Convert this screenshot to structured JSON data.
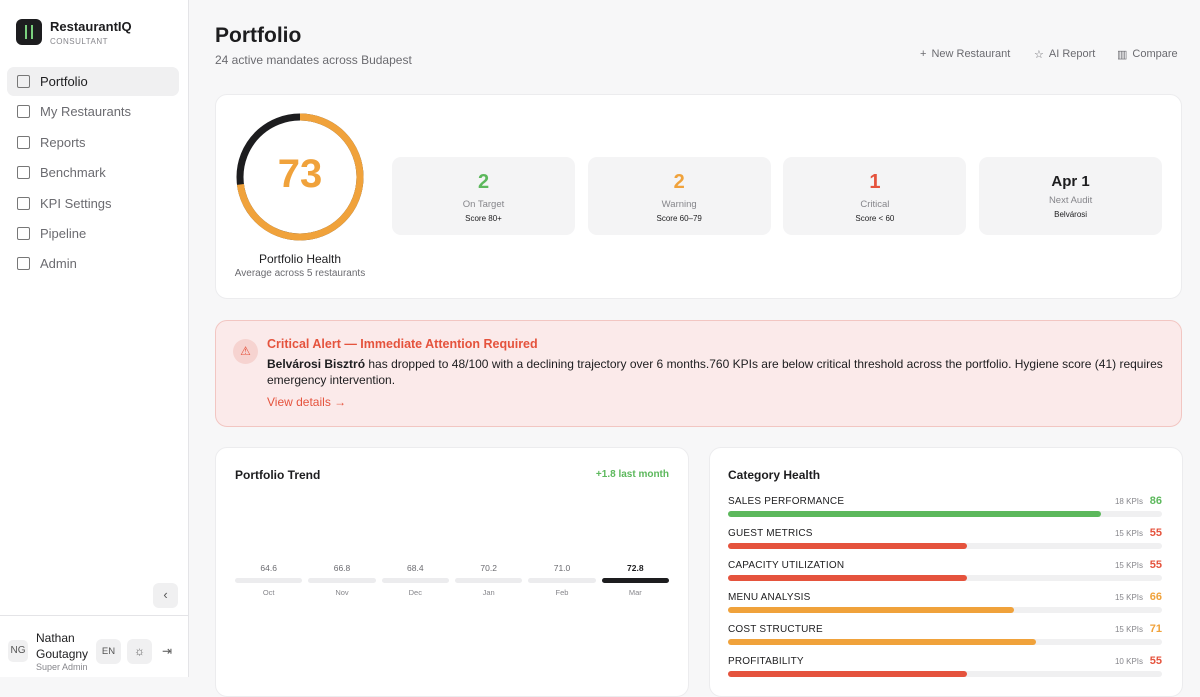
{
  "sidebar": {
    "brand": "RestaurantIQ",
    "role": "CONSULTANT",
    "nav": [
      "Portfolio",
      "My Restaurants",
      "Reports",
      "Benchmark",
      "KPI Settings",
      "Pipeline",
      "Admin"
    ],
    "user": {
      "initials": "NG",
      "name": "Nathan Goutagny",
      "title": "Super Admin",
      "language": "EN"
    }
  },
  "header": {
    "title": "Portfolio",
    "subtitle": "24 active mandates across Budapest",
    "actions": [
      "New Restaurant",
      "AI Report",
      "Compare"
    ]
  },
  "health": {
    "score": 73,
    "label": "Portfolio Health",
    "caption": "Average across 5 restaurants",
    "color": "#f0a23b",
    "stats": [
      {
        "value": 2,
        "label": "On Target",
        "note": "Score 80+",
        "color": "#5cb85c"
      },
      {
        "value": 2,
        "label": "Warning",
        "note": "Score 60–79",
        "color": "#f0a23b"
      },
      {
        "value": 1,
        "label": "Critical",
        "note": "Score < 60",
        "color": "#e5533d"
      },
      {
        "value": "Apr 1",
        "label": "Next Audit",
        "note": "Belvárosi",
        "color": "#1d1d1f"
      }
    ]
  },
  "alert": {
    "title": "Critical Alert — Immediate Attention Required",
    "restaurant": "Belvárosi Bisztró",
    "text": " has dropped to 48/100 with a declining trajectory over 6 months.760 KPIs are below critical threshold across the portfolio. Hygiene score (41) requires emergency intervention.",
    "link": "View details →"
  },
  "trend": {
    "title": "Portfolio Trend",
    "change": "+1.8 last month",
    "categories": [
      "Oct",
      "Nov",
      "Dec",
      "Jan",
      "Feb",
      "Mar"
    ],
    "values": [
      64.6,
      66.8,
      68.4,
      70.2,
      71.0,
      72.8
    ],
    "value_labels": [
      "64.6",
      "66.8",
      "68.4",
      "70.2",
      "71.0",
      "72.8"
    ]
  },
  "categories": {
    "title": "Category Health",
    "rows": [
      {
        "name": "SALES PERFORMANCE",
        "kpis": "18 KPIs",
        "score": 86,
        "color": "#5cb85c"
      },
      {
        "name": "GUEST METRICS",
        "kpis": "15 KPIs",
        "score": 55,
        "color": "#e5533d"
      },
      {
        "name": "CAPACITY UTILIZATION",
        "kpis": "15 KPIs",
        "score": 55,
        "color": "#e5533d"
      },
      {
        "name": "MENU ANALYSIS",
        "kpis": "15 KPIs",
        "score": 66,
        "color": "#f0a23b"
      },
      {
        "name": "COST STRUCTURE",
        "kpis": "15 KPIs",
        "score": 71,
        "color": "#f0a23b"
      },
      {
        "name": "PROFITABILITY",
        "kpis": "10 KPIs",
        "score": 55,
        "color": "#e5533d"
      }
    ]
  }
}
